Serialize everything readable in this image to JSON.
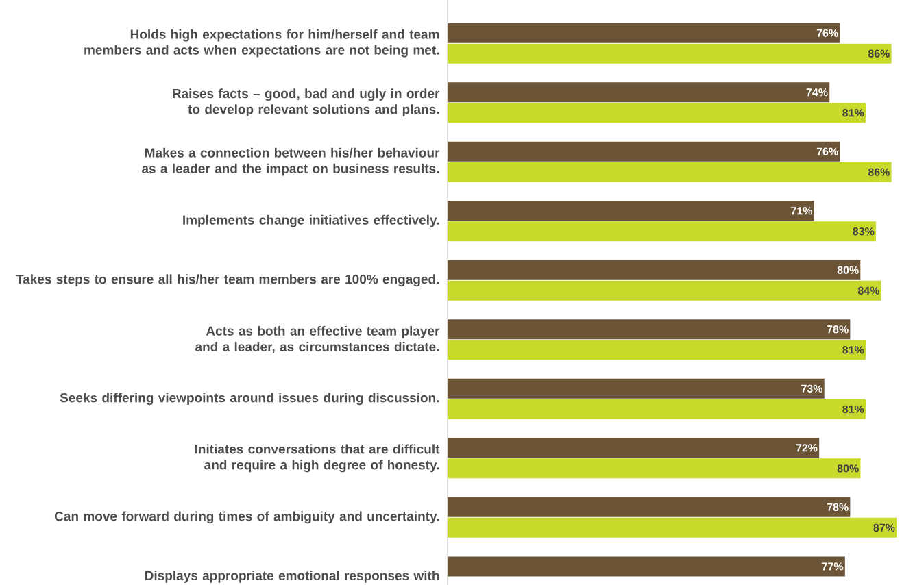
{
  "chart_data": {
    "type": "bar",
    "orientation": "horizontal",
    "categories": [
      "Holds high expectations for him/herself and team members and acts when expectations are not being met.",
      "Raises facts – good, bad and ugly in order to develop relevant solutions and plans.",
      "Makes a connection between his/her behaviour as a leader and the impact on business results.",
      "Implements change initiatives effectively.",
      "Takes steps to ensure all his/her team members are 100% engaged.",
      "Acts as both an effective team player and a leader, as circumstances dictate.",
      "Seeks differing viewpoints around issues during discussion.",
      "Initiates conversations that are difficult and require a high degree of honesty.",
      "Can move forward during times of ambiguity and uncertainty.",
      "Displays appropriate emotional responses with"
    ],
    "series": [
      {
        "color": "#6b5536",
        "values": [
          76,
          74,
          76,
          71,
          80,
          78,
          73,
          72,
          78,
          77
        ],
        "value_labels": [
          "76%",
          "74%",
          "76%",
          "71%",
          "80%",
          "78%",
          "73%",
          "72%",
          "78%",
          "77%"
        ]
      },
      {
        "color": "#c8da2b",
        "values": [
          86,
          81,
          86,
          83,
          84,
          81,
          81,
          80,
          87,
          null
        ],
        "value_labels": [
          "86%",
          "81%",
          "86%",
          "83%",
          "84%",
          "81%",
          "81%",
          "80%",
          "87%",
          null
        ]
      }
    ]
  }
}
